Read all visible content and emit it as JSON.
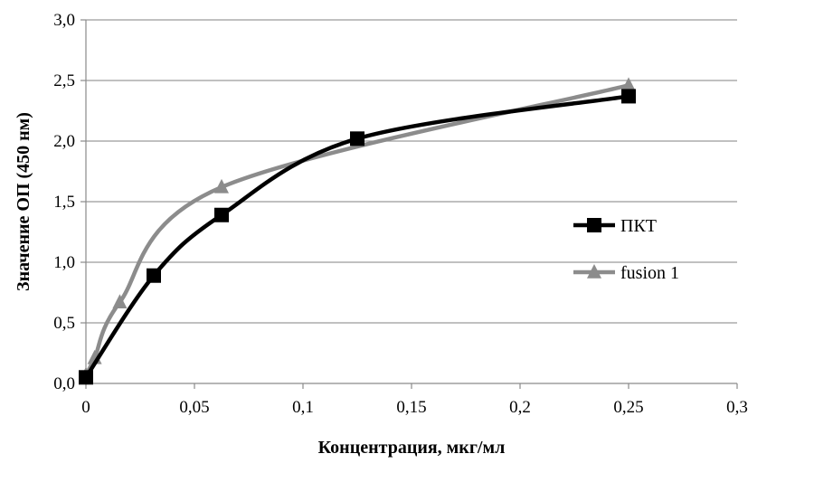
{
  "chart_data": {
    "type": "line",
    "title": "",
    "xlabel": "Концентрация, мкг/мл",
    "ylabel": "Значение ОП (450 нм)",
    "xlim": [
      0,
      0.3
    ],
    "ylim": [
      0,
      3.0
    ],
    "x_ticks": [
      0,
      0.05,
      0.1,
      0.15,
      0.2,
      0.25,
      0.3
    ],
    "x_tick_labels": [
      "0",
      "0,05",
      "0,1",
      "0,15",
      "0,2",
      "0,25",
      "0,3"
    ],
    "y_ticks": [
      0,
      0.5,
      1.0,
      1.5,
      2.0,
      2.5,
      3.0
    ],
    "y_tick_labels": [
      "0,0",
      "0,5",
      "1,0",
      "1,5",
      "2,0",
      "2,5",
      "3,0"
    ],
    "grid": "horizontal",
    "smooth": true,
    "legend_position": "right",
    "series": [
      {
        "name": "ПКТ",
        "color": "#000000",
        "marker": "square",
        "x": [
          0,
          0.03125,
          0.0625,
          0.125,
          0.25
        ],
        "y": [
          0.05,
          0.89,
          1.39,
          2.02,
          2.37
        ]
      },
      {
        "name": "fusion 1",
        "color": "#8c8c8c",
        "marker": "triangle",
        "x": [
          0,
          0.004,
          0.0156,
          0.0625,
          0.25
        ],
        "y": [
          0.07,
          0.21,
          0.67,
          1.62,
          2.46
        ]
      }
    ]
  }
}
